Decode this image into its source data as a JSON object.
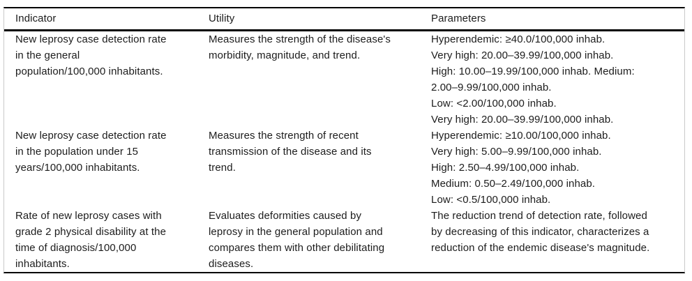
{
  "colors": {
    "rule": "#000000",
    "edge_line": "#c9c9c9",
    "text": "#1c1c1c",
    "background": "#ffffff"
  },
  "table": {
    "headers": {
      "indicator": "Indicator",
      "utility": "Utility",
      "parameters": "Parameters"
    },
    "rows": [
      {
        "indicator": "New leprosy case detection rate\nin the general\npopulation/100,000 inhabitants.",
        "utility": "Measures the strength of the disease's\nmorbidity, magnitude, and trend.",
        "parameters": "Hyperendemic: ≥40.0/100,000 inhab.\nVery high: 20.00–39.99/100,000 inhab.\nHigh: 10.00–19.99/100,000 inhab. Medium:\n2.00–9.99/100,000 inhab.\nLow: <2.00/100,000 inhab.\nVery high: 20.00–39.99/100,000 inhab."
      },
      {
        "indicator": "New leprosy case detection rate\nin the population under 15\nyears/100,000 inhabitants.",
        "utility": "Measures the strength of recent\ntransmission of the disease and its\ntrend.",
        "parameters": "Hyperendemic: ≥10.00/100,000 inhab.\nVery high: 5.00–9.99/100,000 inhab.\nHigh: 2.50–4.99/100,000 inhab.\nMedium: 0.50–2.49/100,000 inhab.\nLow: <0.5/100,000 inhab."
      },
      {
        "indicator": "Rate of new leprosy cases with\ngrade 2 physical disability at the\ntime of diagnosis/100,000\ninhabitants.",
        "utility": "Evaluates deformities caused by\nleprosy in the general population and\ncompares them with other debilitating\ndiseases.",
        "parameters": "The reduction trend of detection rate, followed\nby decreasing of this indicator, characterizes a\nreduction of the endemic disease's magnitude."
      }
    ]
  }
}
